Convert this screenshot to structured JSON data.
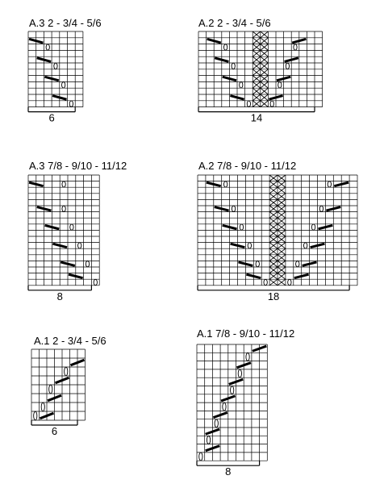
{
  "charts": [
    {
      "id": "a3-small",
      "title": "A.3  2 - 3/4 - 5/6",
      "cols": 7,
      "rows": 12,
      "repeat_label": "6",
      "cells": [
        {
          "r": 1,
          "c": 0,
          "sym": "slash"
        },
        {
          "r": 2,
          "c": 2,
          "sym": "oval"
        },
        {
          "r": 4,
          "c": 1,
          "sym": "slash"
        },
        {
          "r": 5,
          "c": 3,
          "sym": "oval"
        },
        {
          "r": 7,
          "c": 2,
          "sym": "slash"
        },
        {
          "r": 8,
          "c": 4,
          "sym": "oval"
        },
        {
          "r": 10,
          "c": 3,
          "sym": "slash"
        },
        {
          "r": 11,
          "c": 5,
          "sym": "oval"
        }
      ]
    },
    {
      "id": "a2-small",
      "title": "A.2   2 - 3/4 - 5/6",
      "cols": 16,
      "rows": 12,
      "repeat_label": "14",
      "cross_cols": [
        7,
        8
      ],
      "cells": [
        {
          "r": 1,
          "c": 1,
          "sym": "slash"
        },
        {
          "r": 2,
          "c": 3,
          "sym": "oval"
        },
        {
          "r": 4,
          "c": 2,
          "sym": "slash"
        },
        {
          "r": 5,
          "c": 4,
          "sym": "oval"
        },
        {
          "r": 7,
          "c": 3,
          "sym": "slash"
        },
        {
          "r": 8,
          "c": 5,
          "sym": "oval"
        },
        {
          "r": 10,
          "c": 4,
          "sym": "slash"
        },
        {
          "r": 11,
          "c": 6,
          "sym": "oval"
        },
        {
          "r": 1,
          "c": 13,
          "sym": "bslash"
        },
        {
          "r": 2,
          "c": 12,
          "sym": "oval"
        },
        {
          "r": 4,
          "c": 12,
          "sym": "bslash"
        },
        {
          "r": 5,
          "c": 11,
          "sym": "oval"
        },
        {
          "r": 7,
          "c": 11,
          "sym": "bslash"
        },
        {
          "r": 8,
          "c": 10,
          "sym": "oval"
        },
        {
          "r": 10,
          "c": 10,
          "sym": "bslash"
        },
        {
          "r": 11,
          "c": 9,
          "sym": "oval"
        }
      ]
    },
    {
      "id": "a3-large",
      "title": "A.3  7/8 - 9/10 - 11/12",
      "cols": 9,
      "rows": 18,
      "repeat_label": "8",
      "cells": [
        {
          "r": 1,
          "c": 0,
          "sym": "slash"
        },
        {
          "r": 1,
          "c": 4,
          "sym": "oval"
        },
        {
          "r": 5,
          "c": 1,
          "sym": "slash"
        },
        {
          "r": 5,
          "c": 4,
          "sym": "oval"
        },
        {
          "r": 8,
          "c": 2,
          "sym": "slash"
        },
        {
          "r": 8,
          "c": 5,
          "sym": "oval"
        },
        {
          "r": 11,
          "c": 3,
          "sym": "slash"
        },
        {
          "r": 11,
          "c": 6,
          "sym": "oval"
        },
        {
          "r": 14,
          "c": 4,
          "sym": "slash"
        },
        {
          "r": 14,
          "c": 7,
          "sym": "oval"
        },
        {
          "r": 16,
          "c": 5,
          "sym": "slash"
        },
        {
          "r": 17,
          "c": 8,
          "sym": "oval"
        }
      ]
    },
    {
      "id": "a2-large",
      "title": "A.2   7/8 - 9/10 - 11/12",
      "cols": 20,
      "rows": 18,
      "repeat_label": "18",
      "cross_cols": [
        9,
        10
      ],
      "cells": [
        {
          "r": 1,
          "c": 1,
          "sym": "slash"
        },
        {
          "r": 1,
          "c": 3,
          "sym": "oval"
        },
        {
          "r": 5,
          "c": 2,
          "sym": "slash"
        },
        {
          "r": 5,
          "c": 4,
          "sym": "oval"
        },
        {
          "r": 8,
          "c": 3,
          "sym": "slash"
        },
        {
          "r": 8,
          "c": 5,
          "sym": "oval"
        },
        {
          "r": 11,
          "c": 4,
          "sym": "slash"
        },
        {
          "r": 11,
          "c": 6,
          "sym": "oval"
        },
        {
          "r": 14,
          "c": 5,
          "sym": "slash"
        },
        {
          "r": 14,
          "c": 7,
          "sym": "oval"
        },
        {
          "r": 16,
          "c": 6,
          "sym": "slash"
        },
        {
          "r": 17,
          "c": 8,
          "sym": "oval"
        },
        {
          "r": 1,
          "c": 18,
          "sym": "bslash"
        },
        {
          "r": 1,
          "c": 16,
          "sym": "oval"
        },
        {
          "r": 5,
          "c": 17,
          "sym": "bslash"
        },
        {
          "r": 5,
          "c": 15,
          "sym": "oval"
        },
        {
          "r": 8,
          "c": 16,
          "sym": "bslash"
        },
        {
          "r": 8,
          "c": 14,
          "sym": "oval"
        },
        {
          "r": 11,
          "c": 15,
          "sym": "bslash"
        },
        {
          "r": 11,
          "c": 13,
          "sym": "oval"
        },
        {
          "r": 14,
          "c": 14,
          "sym": "bslash"
        },
        {
          "r": 14,
          "c": 12,
          "sym": "oval"
        },
        {
          "r": 16,
          "c": 13,
          "sym": "bslash"
        },
        {
          "r": 17,
          "c": 11,
          "sym": "oval"
        }
      ]
    },
    {
      "id": "a1-small",
      "title": "A.1  2 - 3/4 - 5/6",
      "cols": 7,
      "rows": 8,
      "repeat_label": "6",
      "cells": [
        {
          "r": 1,
          "c": 5,
          "sym": "slash-rise"
        },
        {
          "r": 2,
          "c": 4,
          "sym": "oval"
        },
        {
          "r": 3,
          "c": 3,
          "sym": "slash-rise"
        },
        {
          "r": 4,
          "c": 2,
          "sym": "oval"
        },
        {
          "r": 5,
          "c": 2,
          "sym": "slash-rise"
        },
        {
          "r": 6,
          "c": 1,
          "sym": "oval"
        },
        {
          "r": 7,
          "c": 1,
          "sym": "slash-rise"
        },
        {
          "r": 7,
          "c": 0,
          "sym": "oval"
        }
      ]
    },
    {
      "id": "a1-large",
      "title": "A.1   7/8 - 9/10 - 11/12",
      "cols": 9,
      "rows": 14,
      "repeat_label": "8",
      "cells": [
        {
          "r": 0,
          "c": 7,
          "sym": "slash-rise"
        },
        {
          "r": 1,
          "c": 6,
          "sym": "oval"
        },
        {
          "r": 2,
          "c": 5,
          "sym": "slash-rise"
        },
        {
          "r": 3,
          "c": 5,
          "sym": "oval"
        },
        {
          "r": 4,
          "c": 4,
          "sym": "slash-rise"
        },
        {
          "r": 5,
          "c": 4,
          "sym": "oval"
        },
        {
          "r": 6,
          "c": 3,
          "sym": "slash-rise"
        },
        {
          "r": 7,
          "c": 3,
          "sym": "oval"
        },
        {
          "r": 8,
          "c": 2,
          "sym": "slash-rise"
        },
        {
          "r": 9,
          "c": 2,
          "sym": "oval"
        },
        {
          "r": 10,
          "c": 1,
          "sym": "slash-rise"
        },
        {
          "r": 11,
          "c": 1,
          "sym": "oval"
        },
        {
          "r": 12,
          "c": 1,
          "sym": "slash-rise"
        },
        {
          "r": 13,
          "c": 0,
          "sym": "oval"
        }
      ]
    }
  ]
}
